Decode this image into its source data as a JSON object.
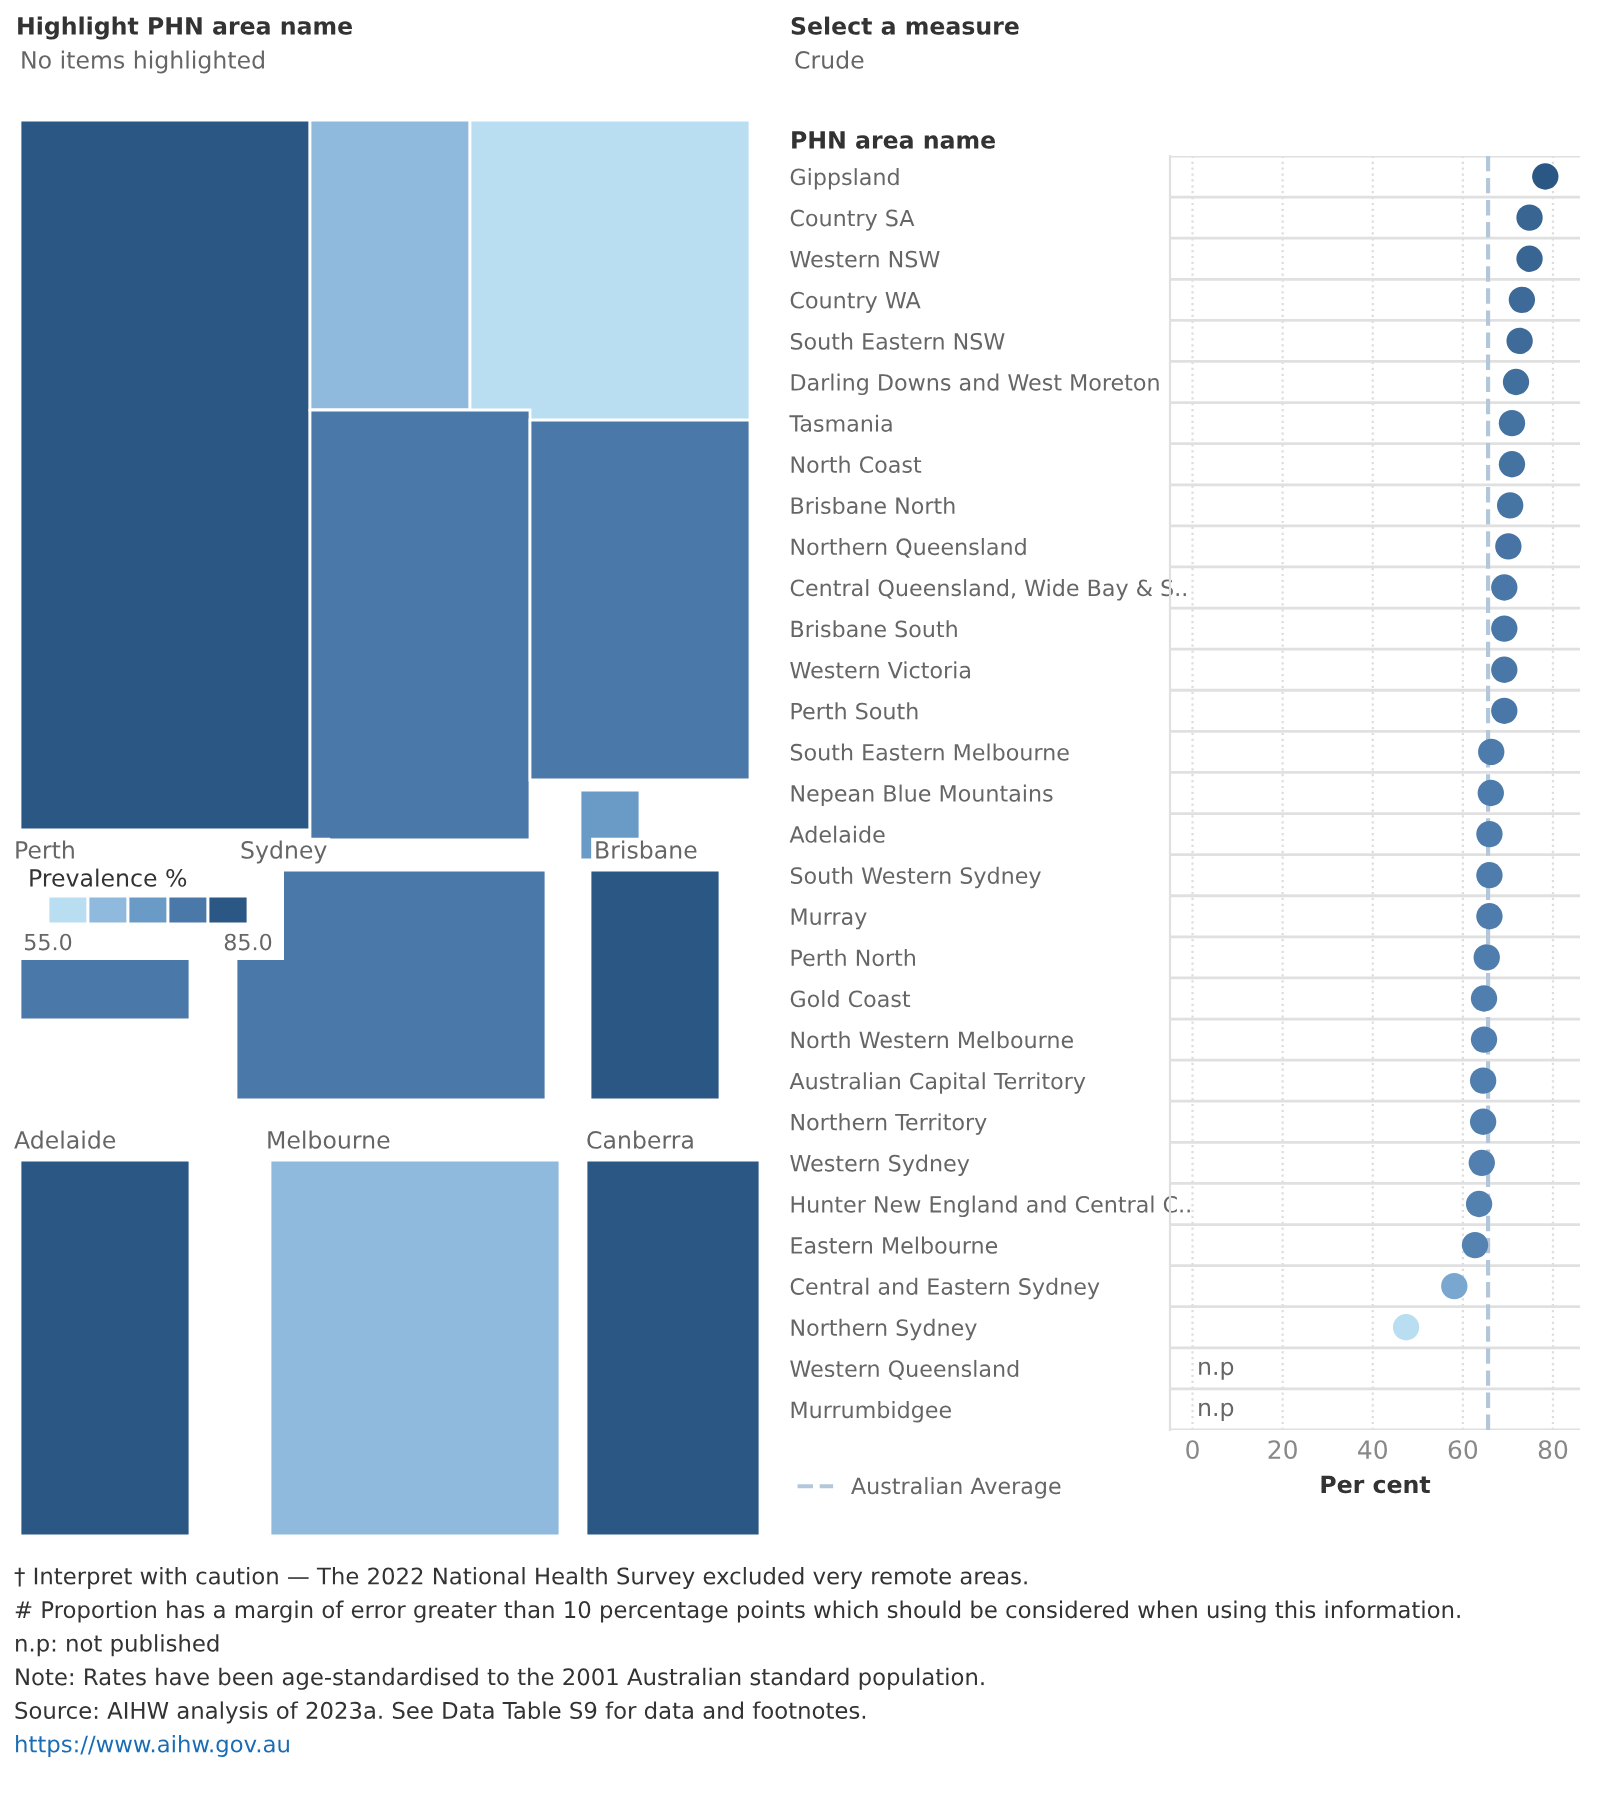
{
  "chart_data": [
    {
      "type": "scatter",
      "title": "Select a measure",
      "subtitle": "Crude",
      "ylabel": "PHN area name",
      "xlabel": "Per cent",
      "categories": [
        "Gippsland",
        "Country SA",
        "Western NSW",
        "Country WA",
        "South Eastern NSW",
        "Darling Downs and West Moreton",
        "Tasmania",
        "North Coast",
        "Brisbane North",
        "Northern Queensland",
        "Central Queensland, Wide Bay & S..",
        "Brisbane South",
        "Western Victoria",
        "Perth South",
        "South Eastern Melbourne",
        "Nepean Blue Mountains",
        "Adelaide",
        "South Western Sydney",
        "Murray",
        "Perth North",
        "Gold Coast",
        "North Western Melbourne",
        "Australian Capital Territory",
        "Northern Territory",
        "Western Sydney",
        "Hunter New England and Central C..",
        "Eastern Melbourne",
        "Central and Eastern Sydney",
        "Northern Sydney",
        "Western Queensland",
        "Murrumbidgee"
      ],
      "values": [
        78.3,
        74.8,
        74.8,
        73.1,
        72.6,
        71.8,
        70.9,
        70.9,
        70.5,
        70.1,
        69.2,
        69.2,
        69.2,
        69.2,
        66.3,
        66.2,
        65.9,
        65.9,
        65.9,
        65.3,
        64.7,
        64.7,
        64.5,
        64.5,
        64.2,
        63.6,
        62.7,
        58.1,
        47.4,
        null,
        null
      ],
      "value_labels": [
        null,
        null,
        null,
        null,
        null,
        null,
        null,
        null,
        null,
        null,
        null,
        null,
        null,
        null,
        null,
        null,
        null,
        null,
        null,
        null,
        null,
        null,
        null,
        null,
        null,
        null,
        null,
        null,
        null,
        "n.p",
        "n.p"
      ],
      "colors": [
        "#2a5783",
        "#386592",
        "#386592",
        "#3d6a98",
        "#3e6b99",
        "#41709e",
        "#4472a1",
        "#4472a1",
        "#4674a3",
        "#4774a4",
        "#4977a7",
        "#4977a7",
        "#4977a7",
        "#4977a7",
        "#4d7bab",
        "#4d7bab",
        "#4e7cac",
        "#4e7cac",
        "#4e7cac",
        "#4f7dad",
        "#507eae",
        "#507eae",
        "#507eae",
        "#507eae",
        "#517faf",
        "#5281b0",
        "#5483b2",
        "#7aa7cf",
        "#b9ddf1",
        "#b9ddf1",
        "#b9ddf1"
      ],
      "orientation": "horizontal",
      "xlim": [
        -5,
        86
      ],
      "xticks": [
        0,
        20,
        40,
        60,
        80
      ],
      "grid": true,
      "marker": "circle",
      "legend": "bottom left",
      "ref_lines": [
        {
          "axis": "x",
          "value": 65.6,
          "label": "Australian Average",
          "color": "#b4c7da",
          "line_style": "dashed"
        }
      ],
      "annotations": [
        "† Interpret with caution — The 2022 National Health Survey excluded very remote areas.",
        "# Proportion has a margin of error greater than 10 percentage points which should be considered when using this information.",
        "n.p: not published",
        "Note: Rates have been age-standardised to the 2001 Australian standard population.",
        "Source: AIHW analysis of 2023a. See Data Table S9 for data and footnotes.",
        "https://www.aihw.gov.au"
      ]
    },
    {
      "type": "other",
      "title": "Highlight PHN area name",
      "subtitle": "No items highlighted",
      "annotations": [
        "Perth",
        "Sydney",
        "Brisbane",
        "Adelaide",
        "Melbourne",
        "Canberra",
        "55.0",
        "85.0"
      ],
      "legend_title": "Prevalence %",
      "colors": [
        "#b9ddf1",
        "#8fbadd",
        "#6a9bc6",
        "#4a78a9",
        "#2a5783"
      ]
    }
  ]
}
